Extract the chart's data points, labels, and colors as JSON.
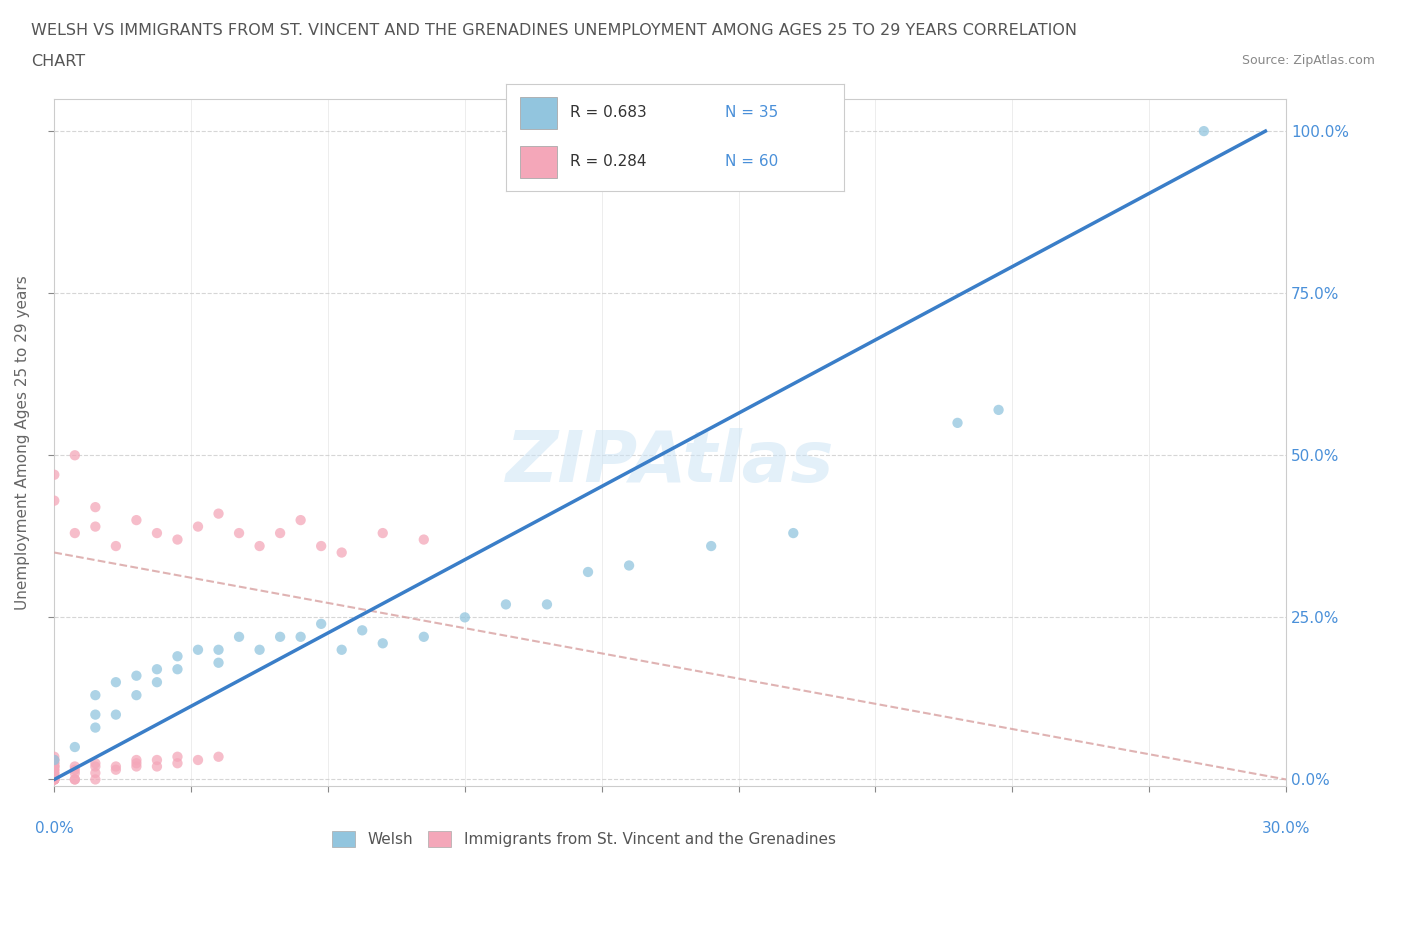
{
  "title_line1": "WELSH VS IMMIGRANTS FROM ST. VINCENT AND THE GRENADINES UNEMPLOYMENT AMONG AGES 25 TO 29 YEARS CORRELATION",
  "title_line2": "CHART",
  "source": "Source: ZipAtlas.com",
  "ylabel": "Unemployment Among Ages 25 to 29 years",
  "xlim": [
    0.0,
    0.3
  ],
  "ylim": [
    -0.01,
    1.05
  ],
  "color_welsh": "#92C5DE",
  "color_svg": "#F4A7B9",
  "color_trendline_welsh": "#3A7EC8",
  "color_trendline_svg": "#E8A0A0",
  "watermark": "ZIPAtlas",
  "welsh_x": [
    0.0,
    0.005,
    0.01,
    0.01,
    0.01,
    0.015,
    0.015,
    0.02,
    0.02,
    0.025,
    0.025,
    0.03,
    0.03,
    0.035,
    0.04,
    0.04,
    0.045,
    0.05,
    0.055,
    0.06,
    0.065,
    0.07,
    0.075,
    0.08,
    0.09,
    0.1,
    0.11,
    0.12,
    0.13,
    0.14,
    0.16,
    0.18,
    0.22,
    0.23,
    0.28
  ],
  "welsh_y": [
    0.03,
    0.05,
    0.08,
    0.1,
    0.13,
    0.1,
    0.15,
    0.13,
    0.16,
    0.15,
    0.17,
    0.17,
    0.19,
    0.2,
    0.18,
    0.2,
    0.22,
    0.2,
    0.22,
    0.22,
    0.24,
    0.2,
    0.23,
    0.21,
    0.22,
    0.25,
    0.27,
    0.27,
    0.32,
    0.33,
    0.36,
    0.38,
    0.55,
    0.57,
    1.0
  ],
  "svg_x": [
    0.0,
    0.0,
    0.0,
    0.0,
    0.0,
    0.0,
    0.0,
    0.0,
    0.0,
    0.0,
    0.0,
    0.0,
    0.0,
    0.0,
    0.0,
    0.0,
    0.0,
    0.0,
    0.0,
    0.0,
    0.005,
    0.005,
    0.005,
    0.005,
    0.005,
    0.01,
    0.01,
    0.01,
    0.01,
    0.015,
    0.015,
    0.02,
    0.02,
    0.02,
    0.025,
    0.025,
    0.03,
    0.03,
    0.035,
    0.04,
    0.0,
    0.0,
    0.005,
    0.005,
    0.01,
    0.01,
    0.015,
    0.02,
    0.025,
    0.03,
    0.035,
    0.04,
    0.045,
    0.05,
    0.055,
    0.06,
    0.065,
    0.07,
    0.08,
    0.09
  ],
  "svg_y": [
    0.0,
    0.0,
    0.0,
    0.0,
    0.0,
    0.0,
    0.005,
    0.005,
    0.01,
    0.01,
    0.015,
    0.015,
    0.02,
    0.02,
    0.02,
    0.025,
    0.025,
    0.03,
    0.03,
    0.035,
    0.0,
    0.0,
    0.01,
    0.015,
    0.02,
    0.0,
    0.01,
    0.02,
    0.025,
    0.015,
    0.02,
    0.02,
    0.025,
    0.03,
    0.02,
    0.03,
    0.025,
    0.035,
    0.03,
    0.035,
    0.43,
    0.47,
    0.38,
    0.5,
    0.39,
    0.42,
    0.36,
    0.4,
    0.38,
    0.37,
    0.39,
    0.41,
    0.38,
    0.36,
    0.38,
    0.4,
    0.36,
    0.35,
    0.38,
    0.37
  ],
  "svg_trendline_x": [
    0.0,
    0.3
  ],
  "svg_trendline_y": [
    0.35,
    0.0
  ],
  "welsh_trendline_x": [
    0.0,
    0.295
  ],
  "welsh_trendline_y": [
    0.0,
    1.0
  ]
}
